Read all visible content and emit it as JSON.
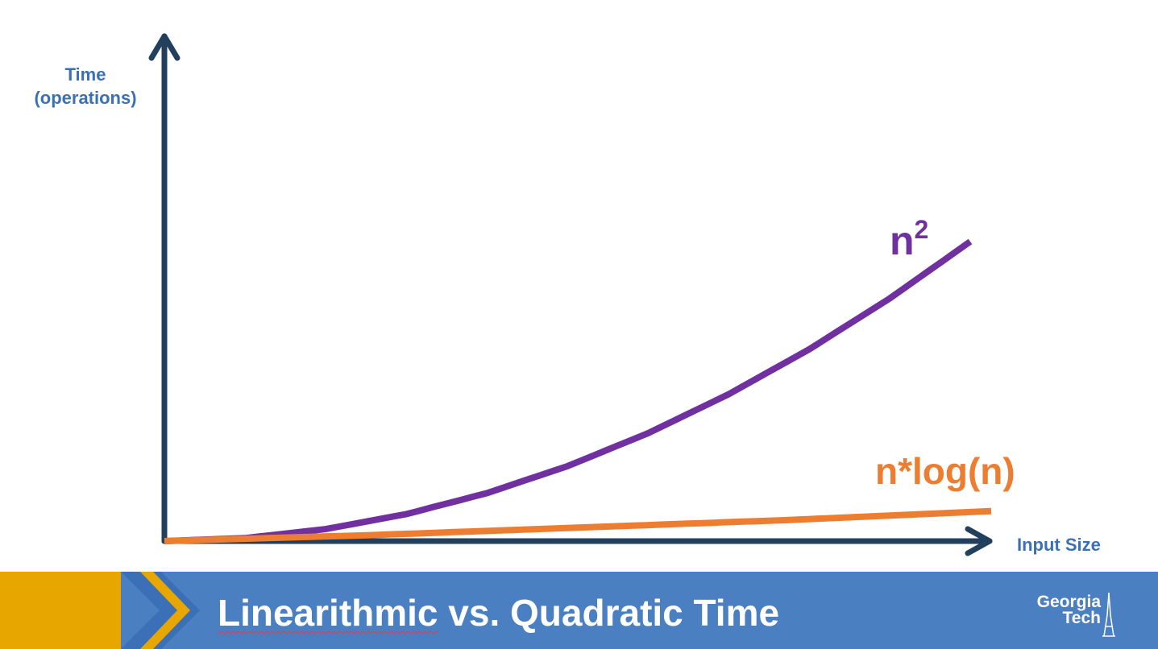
{
  "chart_data": {
    "type": "line",
    "xlabel": "Input Size",
    "ylabel": "Time (operations)",
    "xlim": [
      0,
      1
    ],
    "ylim": [
      0,
      1
    ],
    "grid": false,
    "series": [
      {
        "name": "n²",
        "color": "#7030a0",
        "x": [
          0.0,
          0.1,
          0.2,
          0.3,
          0.4,
          0.5,
          0.6,
          0.7,
          0.8,
          0.9,
          1.0
        ],
        "values": [
          0.0,
          0.01,
          0.04,
          0.09,
          0.16,
          0.25,
          0.36,
          0.49,
          0.64,
          0.81,
          1.0
        ]
      },
      {
        "name": "n*log(n)",
        "color": "#ed7d31",
        "x": [
          0.0,
          0.25,
          0.5,
          0.75,
          1.0
        ],
        "values": [
          0.0,
          0.02,
          0.045,
          0.07,
          0.1
        ]
      }
    ]
  },
  "labels": {
    "ylabel_line1": "Time",
    "ylabel_line2": "(operations)",
    "xlabel": "Input Size",
    "series1_base": "n",
    "series1_sup": "2",
    "series2": "n*log(n)"
  },
  "footer": {
    "title_part1": "Linearithmic",
    "title_part2": " vs. Quadratic Time",
    "logo_line1": "Georgia",
    "logo_line2": "Tech",
    "logo_icon": "georgia-tech-tower-logo",
    "colors": {
      "band": "#4a7fc1",
      "gold": "#e8a600",
      "chevron": "#3b6fb6"
    }
  },
  "colors": {
    "axis": "#22405e",
    "label": "#3b6fb6"
  }
}
